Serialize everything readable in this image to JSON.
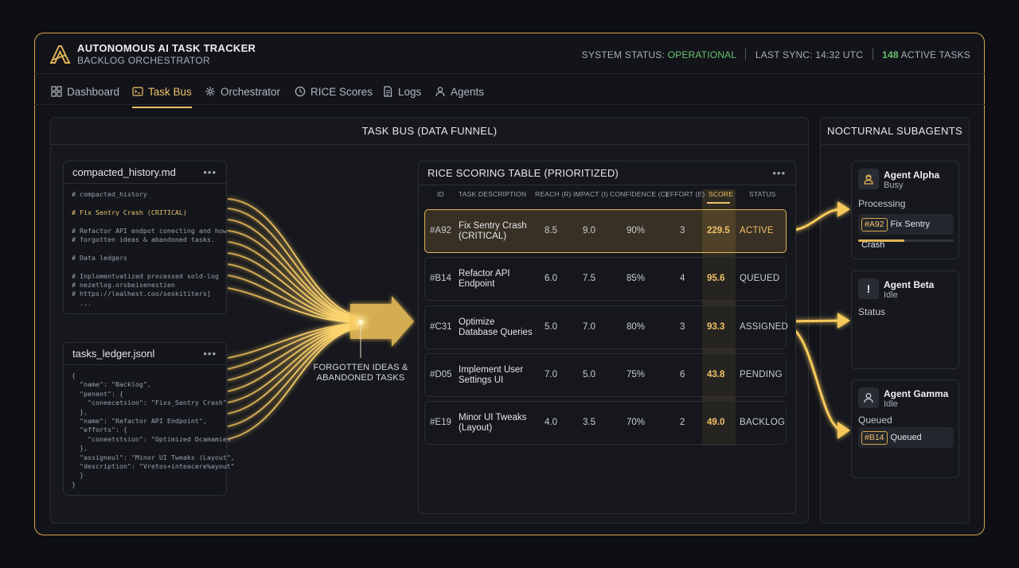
{
  "app": {
    "title": "AUTONOMOUS AI TASK TRACKER",
    "subtitle": "BACKLOG ORCHESTRATOR"
  },
  "status": {
    "system_label": "SYSTEM STATUS:",
    "system_value": "OPERATIONAL",
    "last_sync": "LAST SYNC: 14:32 UTC",
    "active_count": "148",
    "active_label": "ACTIVE TASKS"
  },
  "nav": {
    "items": [
      {
        "label": "Dashboard",
        "icon": "grid-icon"
      },
      {
        "label": "Task Bus",
        "icon": "terminal-icon",
        "active": true
      },
      {
        "label": "Orchestrator",
        "icon": "network-icon"
      },
      {
        "label": "RICE Scores",
        "icon": "gauge-icon"
      },
      {
        "label": "Logs",
        "icon": "document-icon"
      },
      {
        "label": "Agents",
        "icon": "user-icon"
      }
    ]
  },
  "task_bus": {
    "title": "TASK BUS (DATA FUNNEL)",
    "funnel_label": "FORGOTTEN IDEAS & ABANDONED TASKS",
    "files": [
      {
        "name": "compacted_history.md",
        "lines": [
          "# compacted_history",
          "",
          "# Fix Sentry Crash (CRITICAL)",
          "",
          "# Refactor API endpot conecting and how",
          "# forgotten ideas & abandoned tasks.",
          "",
          "# Data ledgers",
          "",
          "# Inplomentvatized processed sold-log",
          "# nezetlog.orsbeisenestien",
          "# https://lealhest.coo/seskititers]",
          "  ..."
        ]
      },
      {
        "name": "tasks_ledger.jsonl",
        "lines": [
          "{",
          "  \"name\": \"Backlog\",",
          "  \"penent\": {",
          "    \"coneecetsion\": \"Fixs_Sentry Crash\"",
          "  },",
          "  \"name\": \"Refactor API Endpoint\",",
          "  \"efforts\": {",
          "    \"coneetstsion\": \"Optimized Dcamamies\"",
          "  },",
          "  \"assigneul\": \"Minor UI Tweaks (Layout\",",
          "  \"description\": \"Vretos+inteacere%ayout\"",
          "  }",
          "}"
        ]
      }
    ]
  },
  "rice": {
    "title": "RICE SCORING TABLE (PRIORITIZED)",
    "columns": [
      "ID",
      "TASK DESCRIPTION",
      "REACH (R)",
      "IMPACT (I)",
      "CONFIDENCE (C)",
      "EFFORT (E)",
      "SCORE",
      "STATUS"
    ],
    "rows": [
      {
        "id": "#A92",
        "desc": "Fix Sentry Crash (CRITICAL)",
        "reach": "8.5",
        "impact": "9.0",
        "confidence": "90%",
        "effort": "3",
        "score": "229.5",
        "status": "ACTIVE"
      },
      {
        "id": "#B14",
        "desc": "Refactor API Endpoint",
        "reach": "6.0",
        "impact": "7.5",
        "confidence": "85%",
        "effort": "4",
        "score": "95.6",
        "status": "QUEUED"
      },
      {
        "id": "#C31",
        "desc": "Optimize Database Queries",
        "reach": "5.0",
        "impact": "7.0",
        "confidence": "80%",
        "effort": "3",
        "score": "93.3",
        "status": "ASSIGNED"
      },
      {
        "id": "#D05",
        "desc": "Implement User Settings UI",
        "reach": "7.0",
        "impact": "5.0",
        "confidence": "75%",
        "effort": "6",
        "score": "43.8",
        "status": "PENDING"
      },
      {
        "id": "#E19",
        "desc": "Minor UI Tweaks (Layout)",
        "reach": "4.0",
        "impact": "3.5",
        "confidence": "70%",
        "effort": "2",
        "score": "49.0",
        "status": "BACKLOG"
      }
    ]
  },
  "agents": {
    "title": "NOCTURNAL SUBAGENTS",
    "list": [
      {
        "name": "Agent Alpha",
        "state": "Busy",
        "label": "Processing",
        "task_id": "#A92",
        "task_name": "Fix Sentry Crash",
        "progress": 0.48,
        "icon": "worker-icon"
      },
      {
        "name": "Agent Beta",
        "state": "Idle",
        "label": "Status",
        "icon": "alert-icon"
      },
      {
        "name": "Agent Gamma",
        "state": "Idle",
        "label": "Queued",
        "task_id": "#B14",
        "task_name": "Queued",
        "icon": "person-icon"
      }
    ]
  },
  "colors": {
    "accent": "#f0c068",
    "border": "#d6a84a",
    "ok": "#6ac26f",
    "bg": "#0d0f14"
  }
}
